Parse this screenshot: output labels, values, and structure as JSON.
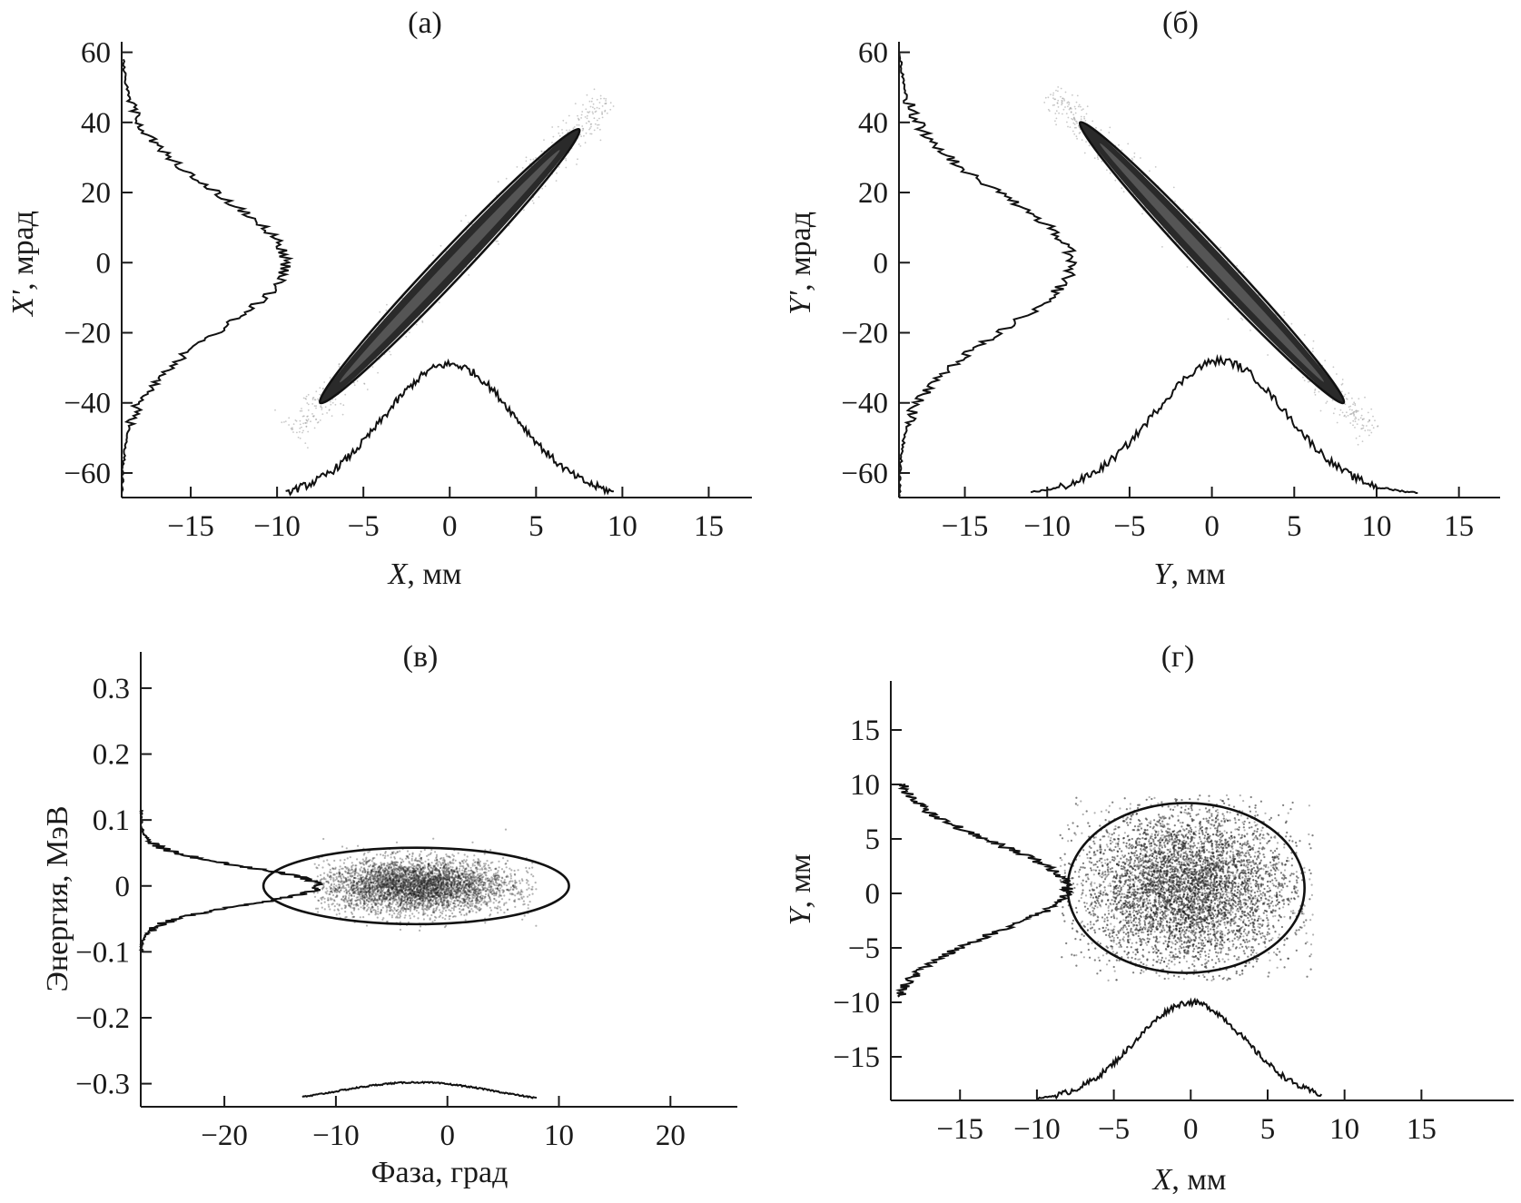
{
  "chart_data": [
    {
      "type": "scatter",
      "panel": "(а)",
      "xlabel_var": "X",
      "xlabel_unit": ", мм",
      "ylabel_var": "X'",
      "ylabel_unit": ", мрад",
      "xlim": [
        -19,
        17.5
      ],
      "ylim": [
        -67,
        63
      ],
      "xticks": [
        -15,
        -10,
        -5,
        0,
        5,
        10,
        15
      ],
      "yticks": [
        -60,
        -40,
        -20,
        0,
        20,
        40,
        60
      ],
      "boundary": {
        "shape": "tilted-ellipse",
        "end_a": [
          -7.5,
          -40
        ],
        "end_b": [
          7.5,
          38
        ],
        "half_width": 0.6
      },
      "scatter_cloud": {
        "center": [
          0,
          0
        ],
        "correlation": "positive",
        "extent_x": [
          -10,
          10
        ],
        "extent_y": [
          -52,
          52
        ]
      },
      "x_profile": {
        "center": 0,
        "sigma": 3.8,
        "baseline_y": -67,
        "peak_y": -29,
        "extent": [
          -9.5,
          9.5
        ]
      },
      "y_profile": {
        "center": 0,
        "sigma": 19,
        "baseline_x": -19,
        "peak_x": -9.5,
        "extent": [
          -67,
          58
        ]
      }
    },
    {
      "type": "scatter",
      "panel": "(б)",
      "xlabel_var": "Y",
      "xlabel_unit": ", мм",
      "ylabel_var": "Y'",
      "ylabel_unit": ", мрад",
      "xlim": [
        -19,
        17.5
      ],
      "ylim": [
        -67,
        63
      ],
      "xticks": [
        -15,
        -10,
        -5,
        0,
        5,
        10,
        15
      ],
      "yticks": [
        -60,
        -40,
        -20,
        0,
        20,
        40,
        60
      ],
      "boundary": {
        "shape": "tilted-ellipse",
        "end_a": [
          -8,
          40
        ],
        "end_b": [
          8,
          -40
        ],
        "half_width": 0.6
      },
      "scatter_cloud": {
        "center": [
          0,
          0
        ],
        "correlation": "negative",
        "extent_x": [
          -10,
          10.5
        ],
        "extent_y": [
          -50,
          52
        ]
      },
      "x_profile": {
        "center": 0.5,
        "sigma": 4.0,
        "baseline_y": -66,
        "peak_y": -28,
        "extent": [
          -11,
          12.5
        ]
      },
      "y_profile": {
        "center": 0,
        "sigma": 19,
        "baseline_x": -19,
        "peak_x": -8.5,
        "extent": [
          -67,
          60
        ]
      }
    },
    {
      "type": "scatter",
      "panel": "(в)",
      "xlabel": "Фаза, град",
      "ylabel": "Энергия, МэВ",
      "xlim": [
        -27.5,
        26
      ],
      "ylim": [
        -0.335,
        0.355
      ],
      "xticks": [
        -20,
        -10,
        0,
        10,
        20
      ],
      "yticks": [
        0.3,
        0.2,
        0.1,
        0,
        -0.1,
        -0.2,
        -0.3
      ],
      "ytick_labels": [
        "0.3",
        "0.2",
        "0.1",
        "0",
        "−0.1",
        "−0.2",
        "−0.3"
      ],
      "boundary": {
        "shape": "ellipse",
        "center": [
          -2.8,
          0.0
        ],
        "rx": 13.7,
        "ry": 0.058
      },
      "scatter_cloud": {
        "center": [
          -2.8,
          0.0
        ],
        "sigma_x": 4.2,
        "sigma_y": 0.02,
        "extent_x": [
          -12,
          8
        ],
        "extent_y": [
          -0.08,
          0.09
        ]
      },
      "x_profile": {
        "center": -2.8,
        "sigma": 7.5,
        "baseline_y": -0.335,
        "peak_y": -0.298,
        "extent": [
          -13,
          8
        ]
      },
      "y_profile": {
        "center": 0,
        "sigma": 0.028,
        "baseline_x": -27.5,
        "peak_x": -11.5,
        "extent": [
          -0.1,
          0.12
        ]
      }
    },
    {
      "type": "scatter",
      "panel": "(г)",
      "xlabel_var": "X",
      "xlabel_unit": ", мм",
      "ylabel_var": "Y",
      "ylabel_unit": ", мм",
      "xlim": [
        -19.5,
        21
      ],
      "ylim": [
        -19,
        19.5
      ],
      "xticks": [
        -15,
        -10,
        -5,
        0,
        5,
        10,
        15
      ],
      "yticks": [
        15,
        10,
        5,
        0,
        -5,
        -10,
        -15
      ],
      "boundary": {
        "shape": "ellipse",
        "center": [
          -0.3,
          0.5
        ],
        "rx": 7.7,
        "ry": 7.8
      },
      "scatter_cloud": {
        "center": [
          -0.3,
          0.5
        ],
        "sigma_x": 3.4,
        "sigma_y": 3.6,
        "extent_x": [
          -8.5,
          8
        ],
        "extent_y": [
          -8,
          9
        ]
      },
      "x_profile": {
        "center": 0,
        "sigma": 3.6,
        "baseline_y": -19,
        "peak_y": -10,
        "extent": [
          -10,
          8.5
        ]
      },
      "y_profile": {
        "center": 0.5,
        "sigma": 4.0,
        "baseline_x": -19.5,
        "peak_x": -8,
        "extent": [
          -9.5,
          10
        ]
      }
    }
  ]
}
